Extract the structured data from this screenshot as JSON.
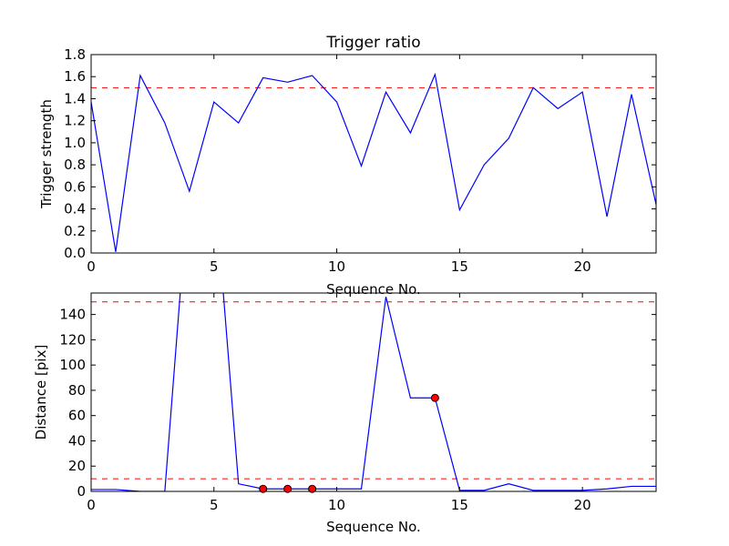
{
  "chart_data": [
    {
      "type": "line",
      "title": "Trigger ratio",
      "xlabel": "Sequence No.",
      "ylabel": "Trigger strength",
      "xlim": [
        0,
        23
      ],
      "ylim": [
        0,
        1.8
      ],
      "xticks": [
        "0",
        "5",
        "10",
        "15",
        "20"
      ],
      "yticks": [
        "0.0",
        "0.2",
        "0.4",
        "0.6",
        "0.8",
        "1.0",
        "1.2",
        "1.4",
        "1.6",
        "1.8"
      ],
      "grid": false,
      "series": [
        {
          "color": "#0000ff",
          "x": [
            0,
            1,
            2,
            3,
            4,
            5,
            6,
            7,
            8,
            9,
            10,
            11,
            12,
            13,
            14,
            15,
            16,
            17,
            18,
            19,
            20,
            21,
            22,
            23
          ],
          "values": [
            1.37,
            0.01,
            1.61,
            1.18,
            0.56,
            1.37,
            1.18,
            1.59,
            1.55,
            1.61,
            1.37,
            0.79,
            1.46,
            1.09,
            1.62,
            0.39,
            0.8,
            1.04,
            1.5,
            1.31,
            1.46,
            0.33,
            1.44,
            0.44
          ]
        }
      ],
      "threshold_lines": [
        {
          "y": 1.5,
          "color": "#ff0000",
          "style": "dashed"
        }
      ]
    },
    {
      "type": "line",
      "title": "",
      "xlabel": "Sequence No.",
      "ylabel": "Distance [pix]",
      "xlim": [
        0,
        23
      ],
      "ylim": [
        0,
        157
      ],
      "xticks": [
        "0",
        "5",
        "10",
        "15",
        "20"
      ],
      "yticks": [
        "0",
        "20",
        "40",
        "60",
        "80",
        "100",
        "120",
        "140"
      ],
      "grid": false,
      "series": [
        {
          "color": "#0000ff",
          "x": [
            0,
            1,
            2,
            3,
            4,
            5,
            6,
            7,
            8,
            9,
            10,
            11,
            12,
            13,
            14,
            15,
            16,
            17,
            18,
            19,
            20,
            21,
            22,
            23
          ],
          "values": [
            1.5,
            1.5,
            0,
            0,
            250,
            250,
            6,
            2,
            2,
            2,
            2,
            2,
            154,
            74,
            74,
            0.8,
            0.8,
            6,
            0.8,
            0.8,
            0.8,
            2,
            4,
            4
          ]
        }
      ],
      "markers": {
        "color": "#ff0000",
        "x": [
          7,
          8,
          9,
          14
        ],
        "values": [
          2,
          2,
          2,
          74
        ]
      },
      "threshold_lines": [
        {
          "y": 150,
          "color": "#ff0000",
          "style": "dashed"
        },
        {
          "y": 10,
          "color": "#ff0000",
          "style": "dashed"
        }
      ]
    }
  ]
}
